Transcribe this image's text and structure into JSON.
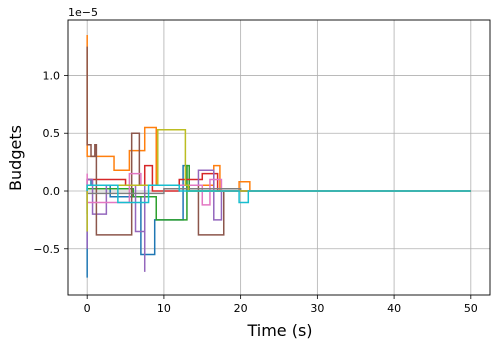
{
  "chart_data": {
    "type": "line",
    "title": "",
    "xlabel": "Time (s)",
    "ylabel": "Budgets",
    "offset_label": "1e−5",
    "xlim": [
      -2.5,
      52.5
    ],
    "ylim": [
      -0.9,
      1.48
    ],
    "x_ticks": [
      0,
      10,
      20,
      30,
      40,
      50
    ],
    "x_tick_labels": [
      "0",
      "10",
      "20",
      "30",
      "40",
      "50"
    ],
    "y_ticks": [
      -0.5,
      0.0,
      0.5,
      1.0
    ],
    "y_tick_labels": [
      "−0.5",
      "0.0",
      "0.5",
      "1.0"
    ],
    "grid": true,
    "legend": "none",
    "series": [
      {
        "color": "#1f77b4",
        "points": [
          [
            0,
            -0.75
          ],
          [
            0,
            0.1
          ],
          [
            0.5,
            0.1
          ],
          [
            0.5,
            0.05
          ],
          [
            3,
            0.05
          ],
          [
            3,
            -0.05
          ],
          [
            7,
            -0.05
          ],
          [
            7,
            -0.55
          ],
          [
            8.8,
            -0.55
          ],
          [
            8.8,
            -0.25
          ],
          [
            12.5,
            -0.25
          ],
          [
            12.5,
            0.22
          ],
          [
            13,
            0.22
          ],
          [
            13,
            0
          ],
          [
            50,
            0
          ]
        ]
      },
      {
        "color": "#ff7f0e",
        "points": [
          [
            0,
            1.35
          ],
          [
            0,
            0.3
          ],
          [
            2,
            0.3
          ],
          [
            2,
            0.3
          ],
          [
            3.5,
            0.3
          ],
          [
            3.5,
            0.18
          ],
          [
            5.5,
            0.18
          ],
          [
            5.5,
            0.35
          ],
          [
            7.5,
            0.35
          ],
          [
            7.5,
            0.55
          ],
          [
            9,
            0.55
          ],
          [
            9,
            0.05
          ],
          [
            16.5,
            0.05
          ],
          [
            16.5,
            0.22
          ],
          [
            17.3,
            0.22
          ],
          [
            17.3,
            0
          ],
          [
            19.8,
            0
          ],
          [
            19.8,
            0.08
          ],
          [
            21.2,
            0.08
          ],
          [
            21.2,
            0
          ],
          [
            50,
            0
          ]
        ]
      },
      {
        "color": "#2ca02c",
        "points": [
          [
            0,
            -0.2
          ],
          [
            0,
            0.02
          ],
          [
            6,
            0.02
          ],
          [
            6,
            -0.05
          ],
          [
            9,
            -0.05
          ],
          [
            9,
            -0.25
          ],
          [
            13,
            -0.25
          ],
          [
            13,
            0.22
          ],
          [
            13.3,
            0.22
          ],
          [
            13.3,
            0
          ],
          [
            50,
            0
          ]
        ]
      },
      {
        "color": "#d62728",
        "points": [
          [
            0,
            0.05
          ],
          [
            0,
            0.1
          ],
          [
            5,
            0.1
          ],
          [
            5,
            0.05
          ],
          [
            7.5,
            0.05
          ],
          [
            7.5,
            0.22
          ],
          [
            8.5,
            0.22
          ],
          [
            8.5,
            0.0
          ],
          [
            12,
            0.0
          ],
          [
            12,
            0.1
          ],
          [
            15,
            0.1
          ],
          [
            15,
            0.15
          ],
          [
            17,
            0.15
          ],
          [
            17,
            0
          ],
          [
            50,
            0
          ]
        ]
      },
      {
        "color": "#9467bd",
        "points": [
          [
            0,
            -0.5
          ],
          [
            0,
            0.1
          ],
          [
            0.7,
            0.1
          ],
          [
            0.7,
            -0.2
          ],
          [
            2.5,
            -0.2
          ],
          [
            2.5,
            0.05
          ],
          [
            6.3,
            0.05
          ],
          [
            6.3,
            -0.35
          ],
          [
            7.5,
            -0.35
          ],
          [
            7.5,
            -0.7
          ],
          [
            7.5,
            0.05
          ],
          [
            14.5,
            0.05
          ],
          [
            14.5,
            0.18
          ],
          [
            16.5,
            0.18
          ],
          [
            16.5,
            -0.25
          ],
          [
            17.5,
            -0.25
          ],
          [
            17.5,
            0
          ],
          [
            50,
            0
          ]
        ]
      },
      {
        "color": "#8c564b",
        "points": [
          [
            0,
            1.25
          ],
          [
            0,
            0.4
          ],
          [
            0.5,
            0.4
          ],
          [
            0.5,
            0.3
          ],
          [
            1,
            0.3
          ],
          [
            1,
            0.4
          ],
          [
            1.2,
            0.4
          ],
          [
            1.2,
            -0.38
          ],
          [
            5.8,
            -0.38
          ],
          [
            5.8,
            0.5
          ],
          [
            6.8,
            0.5
          ],
          [
            6.8,
            0.05
          ],
          [
            14.5,
            0.05
          ],
          [
            14.5,
            -0.38
          ],
          [
            17.8,
            -0.38
          ],
          [
            17.8,
            0
          ],
          [
            50,
            0
          ]
        ]
      },
      {
        "color": "#e377c2",
        "points": [
          [
            0,
            0.15
          ],
          [
            0,
            -0.1
          ],
          [
            5.5,
            -0.1
          ],
          [
            5.5,
            0.15
          ],
          [
            7,
            0.15
          ],
          [
            7,
            0.05
          ],
          [
            15,
            0.05
          ],
          [
            15,
            -0.12
          ],
          [
            16,
            -0.12
          ],
          [
            16,
            0.1
          ],
          [
            17.5,
            0.1
          ],
          [
            17.5,
            0
          ],
          [
            50,
            0
          ]
        ]
      },
      {
        "color": "#7f7f7f",
        "points": [
          [
            0,
            0.0
          ],
          [
            0,
            -0.02
          ],
          [
            10,
            -0.02
          ],
          [
            10,
            0.02
          ],
          [
            20,
            0.02
          ],
          [
            20,
            0
          ],
          [
            50,
            0
          ]
        ]
      },
      {
        "color": "#bcbd22",
        "points": [
          [
            0,
            -0.35
          ],
          [
            0,
            0.05
          ],
          [
            9.2,
            0.05
          ],
          [
            9.2,
            0.53
          ],
          [
            12.8,
            0.53
          ],
          [
            12.8,
            0.05
          ],
          [
            13.2,
            0.05
          ],
          [
            13.2,
            0
          ],
          [
            50,
            0
          ]
        ]
      },
      {
        "color": "#17becf",
        "points": [
          [
            0,
            0.0
          ],
          [
            0,
            0.05
          ],
          [
            4,
            0.05
          ],
          [
            4,
            -0.1
          ],
          [
            8,
            -0.1
          ],
          [
            8,
            0.05
          ],
          [
            12,
            0.05
          ],
          [
            12,
            0.0
          ],
          [
            19.8,
            0.0
          ],
          [
            19.8,
            -0.1
          ],
          [
            21,
            -0.1
          ],
          [
            21,
            0
          ],
          [
            50,
            0
          ]
        ]
      }
    ]
  }
}
